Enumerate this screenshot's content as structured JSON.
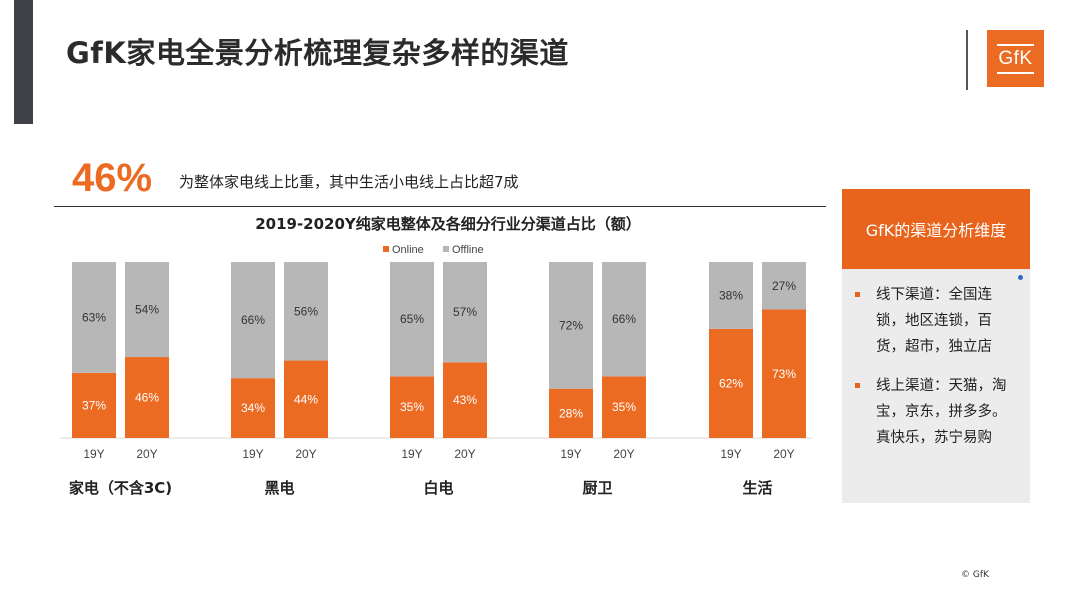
{
  "header": {
    "title": "GfK家电全景分析梳理复杂多样的渠道",
    "logo_text": "GfK"
  },
  "highlight": {
    "value": "46%",
    "text": "为整体家电线上比重，其中生活小电线上占比超7成"
  },
  "chart_data": {
    "type": "bar",
    "stacked": true,
    "title": "2019-2020Y纯家电整体及各细分行业分渠道占比（额）",
    "legend": [
      "Online",
      "Offline"
    ],
    "legend_position": "top-center",
    "groups": [
      {
        "name": "家电（不含3C)",
        "years": [
          "19Y",
          "20Y"
        ],
        "online": [
          37,
          46
        ],
        "offline": [
          63,
          54
        ]
      },
      {
        "name": "黑电",
        "years": [
          "19Y",
          "20Y"
        ],
        "online": [
          34,
          44
        ],
        "offline": [
          66,
          56
        ]
      },
      {
        "name": "白电",
        "years": [
          "19Y",
          "20Y"
        ],
        "online": [
          35,
          43
        ],
        "offline": [
          65,
          57
        ]
      },
      {
        "name": "厨卫",
        "years": [
          "19Y",
          "20Y"
        ],
        "online": [
          28,
          35
        ],
        "offline": [
          72,
          66
        ]
      },
      {
        "name": "生活",
        "years": [
          "19Y",
          "20Y"
        ],
        "online": [
          62,
          73
        ],
        "offline": [
          38,
          27
        ]
      }
    ],
    "ylim": [
      0,
      100
    ],
    "value_suffix": "%",
    "colors": {
      "online": "#ec6b22",
      "offline": "#b7b7b7"
    }
  },
  "side_panel": {
    "header": "GfK的渠道分析维度",
    "items": [
      "线下渠道：全国连锁，地区连锁，百货，超市，独立店",
      "线上渠道：天猫，淘宝，京东，拼多多。真快乐，苏宁易购"
    ]
  },
  "footer": {
    "copyright": "© GfK"
  },
  "colors": {
    "accent": "#ec6b22",
    "dark_bar": "#3f4147",
    "panel_bg": "#ececec"
  }
}
